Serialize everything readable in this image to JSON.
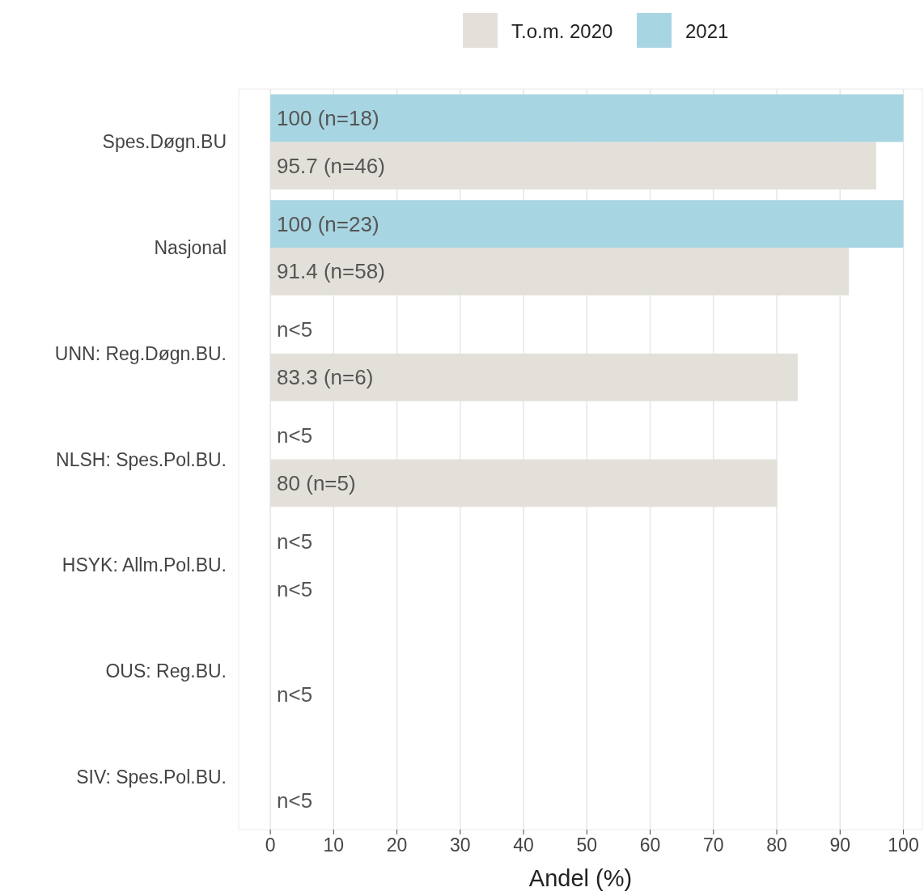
{
  "chart_data": {
    "type": "bar",
    "orientation": "horizontal",
    "xlabel": "Andel (%)",
    "categories": [
      "Spes.Døgn.BU",
      "Nasjonal",
      "UNN: Reg.Døgn.BU.",
      "NLSH: Spes.Pol.BU.",
      "HSYK: Allm.Pol.BU.",
      "OUS: Reg.BU.",
      "SIV: Spes.Pol.BU."
    ],
    "series": [
      {
        "name": "T.o.m. 2020",
        "color": "#e3e0da",
        "values": [
          95.7,
          91.4,
          83.3,
          80,
          null,
          null,
          null
        ],
        "value_labels": [
          "95.7 (n=46)",
          "91.4 (n=58)",
          "83.3 (n=6)",
          "80 (n=5)",
          "n<5",
          "n<5",
          "n<5"
        ]
      },
      {
        "name": "2021",
        "color": "#a8d5e2",
        "values": [
          100,
          100,
          null,
          null,
          null,
          null,
          null
        ],
        "value_labels": [
          "100 (n=18)",
          "100 (n=23)",
          "n<5",
          "n<5",
          "n<5",
          null,
          null
        ]
      }
    ],
    "xlim": [
      -5,
      103
    ],
    "xticks": [
      0,
      10,
      20,
      30,
      40,
      50,
      60,
      70,
      80,
      90,
      100
    ],
    "grid": "x",
    "legend": "top"
  }
}
